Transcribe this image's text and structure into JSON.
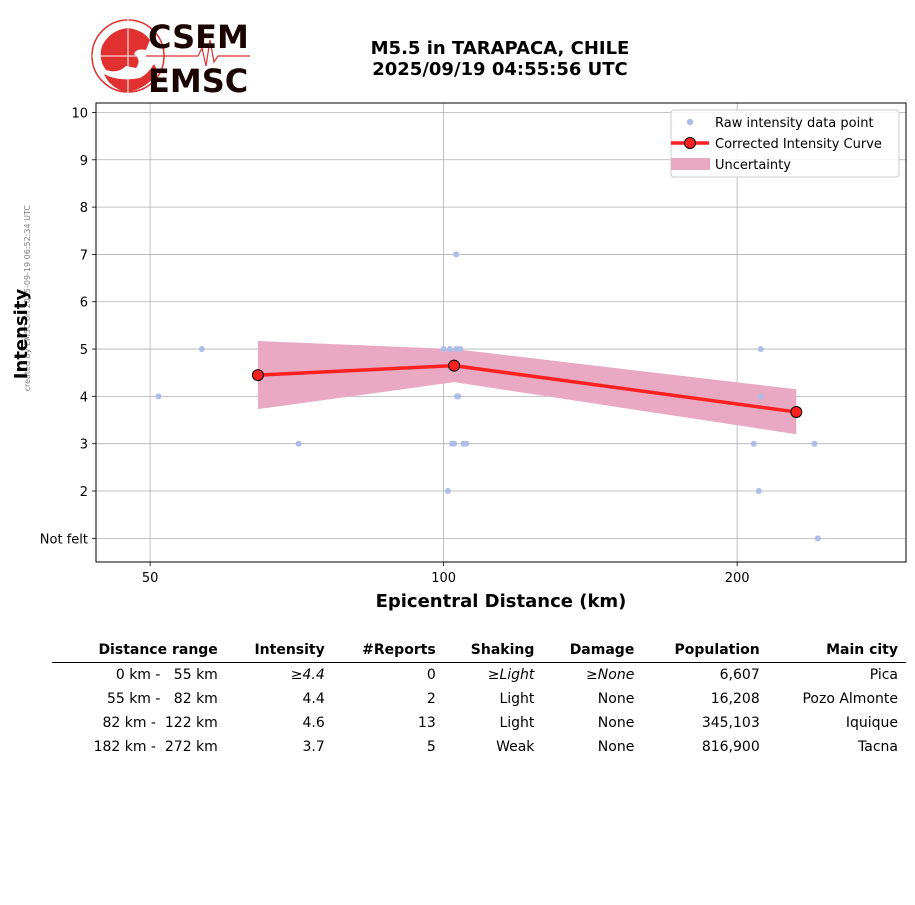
{
  "credit": "created by EMSC on 2025-09-19 06:52:34 UTC",
  "logo": {
    "line1": "CSEM",
    "line2": "EMSC"
  },
  "title": {
    "line1": "M5.5 in TARAPACA, CHILE",
    "line2": "2025/09/19 04:55:56 UTC"
  },
  "chart_data": {
    "type": "scatter",
    "xlabel": "Epicentral Distance (km)",
    "ylabel": "Intensity",
    "x_scale": "log",
    "xlim": [
      44,
      298
    ],
    "ylim": [
      0.5,
      10.2
    ],
    "x_ticks": [
      50,
      100,
      200
    ],
    "x_tick_labels": [
      "50",
      "100",
      "200"
    ],
    "y_ticks": [
      1,
      2,
      3,
      4,
      5,
      6,
      7,
      8,
      9,
      10
    ],
    "y_tick_labels": [
      "Not felt",
      "2",
      "3",
      "4",
      "5",
      "6",
      "7",
      "8",
      "9",
      "10"
    ],
    "grid": true,
    "legend_position": "top-right",
    "colors": {
      "raw": "#aebde8",
      "curve": "#ff2020",
      "uncertainty": "#e9a9c3",
      "marker_edge": "#000000"
    },
    "series": [
      {
        "name": "Raw intensity data point",
        "kind": "points",
        "points": [
          [
            51,
            4
          ],
          [
            56.5,
            5
          ],
          [
            71,
            3
          ],
          [
            100,
            5
          ],
          [
            101,
            2
          ],
          [
            101.5,
            5
          ],
          [
            102,
            3
          ],
          [
            102.5,
            3
          ],
          [
            103,
            7
          ],
          [
            103,
            5
          ],
          [
            103.2,
            4
          ],
          [
            103.5,
            4
          ],
          [
            104,
            5
          ],
          [
            104.8,
            3
          ],
          [
            105.5,
            3
          ],
          [
            208,
            3
          ],
          [
            210.5,
            2
          ],
          [
            211.5,
            5
          ],
          [
            211.5,
            4
          ],
          [
            240,
            3
          ],
          [
            242,
            1
          ]
        ]
      },
      {
        "name": "Corrected Intensity Curve",
        "kind": "line",
        "points": [
          [
            64.5,
            4.45
          ],
          [
            102.5,
            4.65
          ],
          [
            230,
            3.67
          ]
        ]
      },
      {
        "name": "Uncertainty",
        "kind": "band",
        "x": [
          64.5,
          102.5,
          230
        ],
        "lower": [
          3.73,
          4.3,
          3.2
        ],
        "upper": [
          5.17,
          5.0,
          4.15
        ]
      }
    ]
  },
  "table": {
    "headers": [
      "Distance range",
      "Intensity",
      "#Reports",
      "Shaking",
      "Damage",
      "Population",
      "Main city"
    ],
    "rows": [
      [
        "0 km -   55 km",
        "≥4.4",
        "0",
        "≥Light",
        "≥None",
        "6,607",
        "Pica"
      ],
      [
        "55 km -   82 km",
        "4.4",
        "2",
        "Light",
        "None",
        "16,208",
        "Pozo Almonte"
      ],
      [
        "82 km -  122 km",
        "4.6",
        "13",
        "Light",
        "None",
        "345,103",
        "Iquique"
      ],
      [
        "182 km -  272 km",
        "3.7",
        "5",
        "Weak",
        "None",
        "816,900",
        "Tacna"
      ]
    ]
  }
}
